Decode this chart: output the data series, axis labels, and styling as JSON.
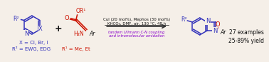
{
  "bg_color": "#f5efe8",
  "arrow_color": "#333333",
  "condition_line1": "CuI (20 mol%), Mephos (30 mol%)",
  "condition_line2": "KHCO₃, DMF, air, 130 °C, 48 h",
  "tandem_line1": "tandem Ullmann C-N coupling",
  "tandem_line2": "and intramolecular amidation",
  "tandem_color": "#8800cc",
  "result_line1": "27 examples",
  "result_line2": "25-89% yield",
  "blue_color": "#3333bb",
  "red_color": "#cc1100",
  "black_color": "#111111",
  "purple_color": "#7700bb"
}
